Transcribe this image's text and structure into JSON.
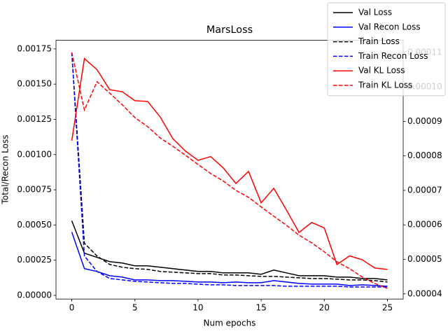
{
  "chart_data": {
    "type": "line",
    "title": "MarsLoss",
    "xlabel": "Num epochs",
    "ylabel": "Total/Recon Loss",
    "x": [
      0,
      1,
      2,
      3,
      4,
      5,
      6,
      7,
      8,
      9,
      10,
      11,
      12,
      13,
      14,
      15,
      16,
      17,
      18,
      19,
      20,
      21,
      22,
      23,
      24,
      25
    ],
    "xlim": [
      -1.25,
      26.25
    ],
    "xticks": [
      0,
      5,
      10,
      15,
      20,
      25
    ],
    "ylim": [
      -2.58e-05,
      0.001811
    ],
    "yticks": [
      {
        "value": 0,
        "label": "0.00000"
      },
      {
        "value": 0.00025,
        "label": "0.00025"
      },
      {
        "value": 0.0005,
        "label": "0.00050"
      },
      {
        "value": 0.00075,
        "label": "0.00075"
      },
      {
        "value": 0.001,
        "label": "0.00100"
      },
      {
        "value": 0.00125,
        "label": "0.00125"
      },
      {
        "value": 0.0015,
        "label": "0.00150"
      },
      {
        "value": 0.00175,
        "label": "0.00175"
      }
    ],
    "y2lim": [
      3.85e-05,
      0.0001135
    ],
    "y2ticks": [
      {
        "value": 4e-05,
        "label": "0.00004"
      },
      {
        "value": 5e-05,
        "label": "0.00005"
      },
      {
        "value": 6e-05,
        "label": "0.00006"
      },
      {
        "value": 7e-05,
        "label": "0.00007"
      },
      {
        "value": 8e-05,
        "label": "0.00008"
      },
      {
        "value": 9e-05,
        "label": "0.00009"
      },
      {
        "value": 0.0001,
        "label": "0.00010"
      },
      {
        "value": 0.00011,
        "label": "0.00011"
      }
    ],
    "legend": "upper right",
    "series": [
      {
        "name": "Val Loss",
        "color": "#000000",
        "linestyle": "solid",
        "axis": "y",
        "values": [
          0.00053,
          0.0003,
          0.00027,
          0.00024,
          0.00023,
          0.00021,
          0.00021,
          0.0002,
          0.00019,
          0.00018,
          0.00017,
          0.00017,
          0.00016,
          0.00016,
          0.00016,
          0.00015,
          0.00018,
          0.00016,
          0.00014,
          0.00014,
          0.00014,
          0.00013,
          0.00013,
          0.00012,
          0.00012,
          0.00011
        ]
      },
      {
        "name": "Val Recon Loss",
        "color": "#0000ff",
        "linestyle": "solid",
        "axis": "y",
        "values": [
          0.00045,
          0.00019,
          0.00017,
          0.00014,
          0.00013,
          0.00011,
          0.00011,
          0.000105,
          0.000105,
          0.0001,
          9.5e-05,
          9.5e-05,
          9e-05,
          9.5e-05,
          9e-05,
          9e-05,
          0.000105,
          9.5e-05,
          8.5e-05,
          8e-05,
          8e-05,
          8e-05,
          7e-05,
          7.5e-05,
          7e-05,
          6.5e-05
        ]
      },
      {
        "name": "Train Loss",
        "color": "#000000",
        "linestyle": "dashed",
        "axis": "y",
        "values": [
          0.001725,
          0.00037,
          0.00028,
          0.00022,
          0.0002,
          0.00019,
          0.000185,
          0.00017,
          0.000165,
          0.00016,
          0.000155,
          0.000155,
          0.000145,
          0.000145,
          0.00014,
          0.000135,
          0.000135,
          0.00013,
          0.000125,
          0.00012,
          0.00012,
          0.000115,
          0.00011,
          0.00011,
          0.000105,
          9.5e-05
        ]
      },
      {
        "name": "Train Recon Loss",
        "color": "#0000ff",
        "linestyle": "dashed",
        "axis": "y",
        "values": [
          0.001725,
          0.00028,
          0.00017,
          0.00012,
          0.00011,
          0.0001,
          9.5e-05,
          9e-05,
          8.5e-05,
          8.5e-05,
          8e-05,
          7.5e-05,
          7.5e-05,
          7e-05,
          7e-05,
          7e-05,
          7e-05,
          6.5e-05,
          6.5e-05,
          6.5e-05,
          6.5e-05,
          6.5e-05,
          6e-05,
          6e-05,
          6e-05,
          6e-05
        ]
      },
      {
        "name": "Val KL Loss",
        "color": "#ff0000",
        "linestyle": "solid",
        "axis": "y2",
        "values": [
          8.44e-05,
          0.0001082,
          0.000105,
          9.92e-05,
          9.86e-05,
          9.6e-05,
          9.58e-05,
          9.13e-05,
          8.5e-05,
          8.14e-05,
          7.87e-05,
          7.98e-05,
          7.65e-05,
          7.2e-05,
          7.55e-05,
          6.64e-05,
          7.06e-05,
          6.43e-05,
          5.78e-05,
          6.07e-05,
          5.91e-05,
          4.85e-05,
          5.1e-05,
          4.99e-05,
          4.75e-05,
          4.71e-05
        ]
      },
      {
        "name": "Train KL Loss",
        "color": "#ff0000",
        "linestyle": "dashed",
        "axis": "y2",
        "values": [
          0.00011,
          9.33e-05,
          0.0001015,
          9.82e-05,
          9.48e-05,
          9.11e-05,
          8.85e-05,
          8.52e-05,
          8.28e-05,
          8.02e-05,
          7.75e-05,
          7.49e-05,
          7.27e-05,
          7e-05,
          6.8e-05,
          6.52e-05,
          6.25e-05,
          5.99e-05,
          5.7e-05,
          5.48e-05,
          5.22e-05,
          4.93e-05,
          4.73e-05,
          4.49e-05,
          4.3e-05,
          4.16e-05
        ]
      }
    ]
  }
}
